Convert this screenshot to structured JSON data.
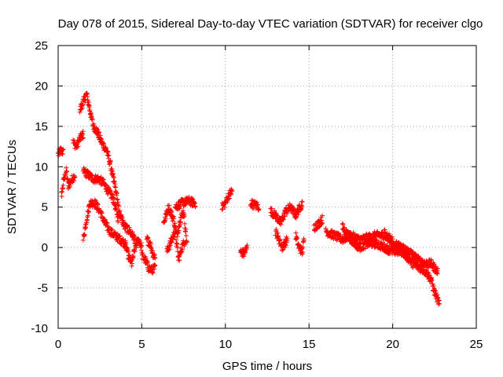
{
  "chart_data": {
    "type": "scatter",
    "title": "Day 078 of 2015, Sidereal Day-to-day VTEC variation (SDTVAR) for receiver clgo",
    "xlabel": "GPS time / hours",
    "ylabel": "SDTVAR / TECUs",
    "xlim": [
      0,
      25
    ],
    "ylim": [
      -10,
      25
    ],
    "xticks": [
      0,
      5,
      10,
      15,
      20,
      25
    ],
    "yticks": [
      -10,
      -5,
      0,
      5,
      10,
      15,
      20,
      25
    ],
    "grid": true,
    "marker": "+",
    "color": "#ff0000",
    "series": [
      {
        "name": "SDTVAR",
        "segments": [
          {
            "t0": 0.0,
            "t1": 0.3,
            "pts": [
              [
                0.0,
                11.5
              ],
              [
                0.15,
                12.0
              ],
              [
                0.3,
                11.8
              ]
            ]
          },
          {
            "t0": 0.2,
            "t1": 1.0,
            "pts": [
              [
                0.2,
                6.5
              ],
              [
                0.35,
                8.5
              ],
              [
                0.5,
                9.5
              ],
              [
                0.6,
                7.5
              ],
              [
                0.7,
                8.0
              ],
              [
                0.85,
                8.5
              ],
              [
                1.0,
                9.0
              ]
            ]
          },
          {
            "t0": 0.9,
            "t1": 1.5,
            "pts": [
              [
                0.9,
                13.0
              ],
              [
                1.1,
                12.5
              ],
              [
                1.3,
                13.5
              ],
              [
                1.5,
                14.0
              ]
            ]
          },
          {
            "t0": 1.3,
            "t1": 2.3,
            "pts": [
              [
                1.3,
                17.0
              ],
              [
                1.5,
                18.0
              ],
              [
                1.7,
                19.0
              ],
              [
                1.9,
                17.0
              ],
              [
                2.1,
                15.0
              ],
              [
                2.3,
                14.5
              ]
            ]
          },
          {
            "t0": 2.3,
            "t1": 3.3,
            "pts": [
              [
                2.3,
                14.5
              ],
              [
                2.6,
                13.0
              ],
              [
                2.9,
                12.0
              ],
              [
                3.1,
                10.5
              ],
              [
                3.3,
                8.5
              ]
            ]
          },
          {
            "t0": 1.5,
            "t1": 3.6,
            "pts": [
              [
                1.5,
                9.5
              ],
              [
                1.8,
                9.0
              ],
              [
                2.1,
                8.5
              ],
              [
                2.4,
                8.5
              ],
              [
                2.7,
                8.0
              ],
              [
                3.0,
                7.0
              ],
              [
                3.3,
                6.0
              ],
              [
                3.6,
                3.5
              ]
            ]
          },
          {
            "t0": 1.5,
            "t1": 4.0,
            "pts": [
              [
                1.5,
                1.0
              ],
              [
                1.7,
                3.5
              ],
              [
                1.9,
                5.5
              ],
              [
                2.2,
                5.5
              ],
              [
                2.5,
                4.5
              ],
              [
                2.8,
                3.0
              ],
              [
                3.1,
                2.0
              ],
              [
                3.4,
                1.5
              ],
              [
                3.7,
                1.0
              ],
              [
                4.0,
                0.5
              ]
            ]
          },
          {
            "t0": 3.3,
            "t1": 4.6,
            "pts": [
              [
                3.3,
                8.5
              ],
              [
                3.5,
                6.5
              ],
              [
                3.7,
                4.0
              ],
              [
                4.0,
                2.5
              ],
              [
                4.3,
                2.0
              ],
              [
                4.6,
                1.0
              ]
            ]
          },
          {
            "t0": 4.0,
            "t1": 5.0,
            "pts": [
              [
                4.0,
                0.5
              ],
              [
                4.2,
                -1.0
              ],
              [
                4.4,
                -2.0
              ],
              [
                4.6,
                0.0
              ],
              [
                4.8,
                1.0
              ],
              [
                5.0,
                0.0
              ]
            ]
          },
          {
            "t0": 5.0,
            "t1": 5.8,
            "pts": [
              [
                5.0,
                -1.0
              ],
              [
                5.2,
                -1.5
              ],
              [
                5.4,
                -2.5
              ],
              [
                5.6,
                -2.8
              ],
              [
                5.8,
                -2.5
              ]
            ]
          },
          {
            "t0": 5.3,
            "t1": 5.8,
            "pts": [
              [
                5.3,
                1.0
              ],
              [
                5.5,
                0.5
              ],
              [
                5.7,
                -1.0
              ]
            ]
          },
          {
            "t0": 6.3,
            "t1": 7.7,
            "pts": [
              [
                6.3,
                3.0
              ],
              [
                6.6,
                5.0
              ],
              [
                6.9,
                3.5
              ],
              [
                7.1,
                1.5
              ],
              [
                7.3,
                3.5
              ],
              [
                7.5,
                4.5
              ],
              [
                7.7,
                0.5
              ]
            ]
          },
          {
            "t0": 6.5,
            "t1": 7.6,
            "pts": [
              [
                6.5,
                -0.5
              ],
              [
                6.8,
                1.0
              ],
              [
                7.0,
                2.0
              ],
              [
                7.2,
                -1.5
              ],
              [
                7.4,
                0.0
              ],
              [
                7.6,
                1.0
              ]
            ]
          },
          {
            "t0": 7.0,
            "t1": 8.2,
            "pts": [
              [
                7.0,
                5.0
              ],
              [
                7.4,
                5.5
              ],
              [
                7.8,
                5.8
              ],
              [
                8.0,
                5.6
              ],
              [
                8.2,
                5.5
              ]
            ]
          },
          {
            "t0": 9.8,
            "t1": 10.4,
            "pts": [
              [
                9.8,
                5.0
              ],
              [
                10.0,
                5.5
              ],
              [
                10.2,
                6.5
              ],
              [
                10.4,
                7.0
              ]
            ]
          },
          {
            "t0": 10.9,
            "t1": 11.3,
            "pts": [
              [
                10.9,
                -0.5
              ],
              [
                11.1,
                -0.8
              ],
              [
                11.3,
                0.0
              ]
            ]
          },
          {
            "t0": 11.5,
            "t1": 12.0,
            "pts": [
              [
                11.5,
                5.5
              ],
              [
                11.7,
                5.3
              ],
              [
                11.9,
                5.2
              ],
              [
                12.0,
                5.0
              ]
            ]
          },
          {
            "t0": 12.7,
            "t1": 14.6,
            "pts": [
              [
                12.7,
                4.5
              ],
              [
                13.0,
                4.0
              ],
              [
                13.3,
                3.0
              ],
              [
                13.6,
                4.5
              ],
              [
                13.9,
                5.0
              ],
              [
                14.2,
                4.0
              ],
              [
                14.6,
                5.5
              ]
            ]
          },
          {
            "t0": 13.0,
            "t1": 13.7,
            "pts": [
              [
                13.0,
                2.0
              ],
              [
                13.2,
                1.0
              ],
              [
                13.4,
                0.0
              ],
              [
                13.7,
                1.0
              ]
            ]
          },
          {
            "t0": 14.2,
            "t1": 14.7,
            "pts": [
              [
                14.2,
                1.5
              ],
              [
                14.4,
                0.0
              ],
              [
                14.6,
                -0.5
              ],
              [
                14.7,
                1.0
              ]
            ]
          },
          {
            "t0": 15.3,
            "t1": 15.8,
            "pts": [
              [
                15.3,
                2.5
              ],
              [
                15.5,
                2.8
              ],
              [
                15.8,
                3.5
              ]
            ]
          },
          {
            "t0": 16.0,
            "t1": 20.0,
            "pts": [
              [
                16.0,
                2.0
              ],
              [
                16.5,
                1.5
              ],
              [
                17.0,
                1.0
              ],
              [
                17.5,
                1.5
              ],
              [
                18.0,
                1.0
              ],
              [
                18.5,
                1.2
              ],
              [
                19.0,
                1.5
              ],
              [
                19.5,
                1.5
              ],
              [
                20.0,
                1.0
              ]
            ]
          },
          {
            "t0": 17.0,
            "t1": 21.0,
            "pts": [
              [
                17.0,
                2.5
              ],
              [
                17.5,
                1.0
              ],
              [
                18.0,
                0.0
              ],
              [
                18.5,
                0.5
              ],
              [
                19.0,
                0.5
              ],
              [
                19.5,
                0.0
              ],
              [
                20.0,
                -0.5
              ],
              [
                20.5,
                -0.5
              ],
              [
                21.0,
                -1.0
              ]
            ]
          },
          {
            "t0": 19.5,
            "t1": 22.7,
            "pts": [
              [
                19.5,
                1.8
              ],
              [
                20.0,
                0.5
              ],
              [
                20.5,
                0.0
              ],
              [
                21.0,
                -0.5
              ],
              [
                21.5,
                -1.5
              ],
              [
                22.0,
                -2.0
              ],
              [
                22.3,
                -2.0
              ],
              [
                22.7,
                -3.0
              ]
            ]
          },
          {
            "t0": 20.8,
            "t1": 22.8,
            "pts": [
              [
                20.8,
                -1.0
              ],
              [
                21.2,
                -2.0
              ],
              [
                21.6,
                -2.5
              ],
              [
                22.0,
                -3.0
              ],
              [
                22.3,
                -4.0
              ],
              [
                22.5,
                -5.5
              ],
              [
                22.7,
                -6.5
              ],
              [
                22.8,
                -7.0
              ]
            ]
          }
        ]
      }
    ]
  }
}
